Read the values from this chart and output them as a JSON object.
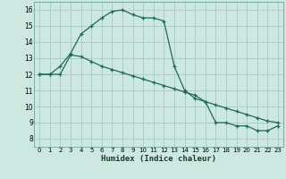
{
  "xlabel": "Humidex (Indice chaleur)",
  "background_color": "#cce8e0",
  "grid_color": "#a8d0c8",
  "line_color": "#1a6b5a",
  "xlim": [
    -0.5,
    23.5
  ],
  "ylim": [
    7.5,
    16.5
  ],
  "yticks": [
    8,
    9,
    10,
    11,
    12,
    13,
    14,
    15,
    16
  ],
  "xticks": [
    0,
    1,
    2,
    3,
    4,
    5,
    6,
    7,
    8,
    9,
    10,
    11,
    12,
    13,
    14,
    15,
    16,
    17,
    18,
    19,
    20,
    21,
    22,
    23
  ],
  "line1_x": [
    0,
    1,
    2,
    3,
    4,
    5,
    6,
    7,
    8,
    9,
    10,
    11,
    12,
    13,
    14,
    15,
    16,
    17,
    18,
    19,
    20,
    21,
    22,
    23
  ],
  "line1_y": [
    12.0,
    12.0,
    12.5,
    13.3,
    14.5,
    15.0,
    15.5,
    15.9,
    16.0,
    15.7,
    15.5,
    15.5,
    15.3,
    12.5,
    11.0,
    10.5,
    10.3,
    9.0,
    9.0,
    8.8,
    8.8,
    8.5,
    8.5,
    8.8
  ],
  "line2_x": [
    0,
    1,
    2,
    3,
    4,
    5,
    6,
    7,
    8,
    9,
    10,
    11,
    12,
    13,
    14,
    15,
    16,
    17,
    18,
    19,
    20,
    21,
    22,
    23
  ],
  "line2_y": [
    12.0,
    12.0,
    12.0,
    13.2,
    13.1,
    12.8,
    12.5,
    12.3,
    12.1,
    11.9,
    11.7,
    11.5,
    11.3,
    11.1,
    10.9,
    10.7,
    10.3,
    10.1,
    9.9,
    9.7,
    9.5,
    9.3,
    9.1,
    9.0
  ]
}
